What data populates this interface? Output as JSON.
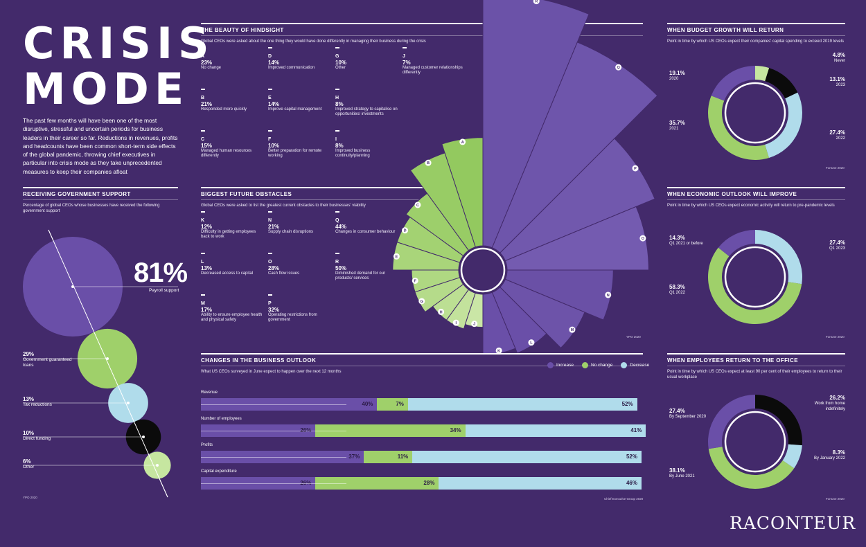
{
  "title_lines": [
    "CRISIS",
    "MODE"
  ],
  "intro": "The past few months will have been one of the most disruptive, stressful and uncertain periods for business leaders in their career so far. Reductions in revenues, profits and headcounts have been common short-term side effects of the global pandemic, throwing chief executives in particular into crisis mode as they take unprecedented measures to keep their companies afloat",
  "hindsight": {
    "title": "THE BEAUTY OF HINDSIGHT",
    "subtitle": "Global CEOs were asked about the one thing they would have done differently in managing their business during the crisis",
    "items": [
      {
        "letter": "A",
        "pct": "23%",
        "desc": "No change"
      },
      {
        "letter": "D",
        "pct": "14%",
        "desc": "Improved communication"
      },
      {
        "letter": "G",
        "pct": "10%",
        "desc": "Other"
      },
      {
        "letter": "J",
        "pct": "7%",
        "desc": "Managed customer relationships differently"
      },
      {
        "letter": "B",
        "pct": "21%",
        "desc": "Responded more quickly"
      },
      {
        "letter": "E",
        "pct": "14%",
        "desc": "Improve capital management"
      },
      {
        "letter": "H",
        "pct": "8%",
        "desc": "Improved strategy to capitalise on opportunities/ investments"
      },
      {
        "letter": "C",
        "pct": "15%",
        "desc": "Managed human resources differently"
      },
      {
        "letter": "F",
        "pct": "10%",
        "desc": "Better preparation for remote working"
      },
      {
        "letter": "I",
        "pct": "8%",
        "desc": "Improved business continuity/planning"
      }
    ]
  },
  "obstacles": {
    "title": "BIGGEST FUTURE OBSTACLES",
    "subtitle": "Global CEOs were asked to list the greatest current obstacles to their businesses' viability",
    "items": [
      {
        "letter": "K",
        "pct": "12%",
        "desc": "Difficulty in getting employees back to work"
      },
      {
        "letter": "N",
        "pct": "21%",
        "desc": "Supply chain disruptions"
      },
      {
        "letter": "Q",
        "pct": "44%",
        "desc": "Changes in consumer behaviour"
      },
      {
        "letter": "L",
        "pct": "13%",
        "desc": "Decreased access to capital"
      },
      {
        "letter": "O",
        "pct": "28%",
        "desc": "Cash flow issues"
      },
      {
        "letter": "R",
        "pct": "50%",
        "desc": "Diminished demand for our products/ services"
      },
      {
        "letter": "M",
        "pct": "17%",
        "desc": "Ability to ensure employee health and physical safety"
      },
      {
        "letter": "P",
        "pct": "32%",
        "desc": "Operating restrictions from government"
      }
    ],
    "source": "YPO 2020"
  },
  "gov": {
    "title": "RECEIVING GOVERNMENT SUPPORT",
    "subtitle": "Percentage of global CEOs whose businesses have received the following government support",
    "items": [
      {
        "pct": "81%",
        "label": "Payroll support"
      },
      {
        "pct": "29%",
        "label": "Government guaranteed loans"
      },
      {
        "pct": "13%",
        "label": "Tax reductions"
      },
      {
        "pct": "10%",
        "label": "Direct funding"
      },
      {
        "pct": "6%",
        "label": "Other"
      }
    ],
    "source": "YPO 2020"
  },
  "budget": {
    "title": "WHEN BUDGET GROWTH WILL RETURN",
    "subtitle": "Point in time by which US CEOs expect their companies' capital spending to exceed 2019 levels",
    "source": "Fortune 2020"
  },
  "economy": {
    "title": "WHEN ECONOMIC OUTLOOK WILL IMPROVE",
    "subtitle": "Point in time by which US CEOs expect economic activity will return to pre-pandemic levels",
    "source": "Fortune 2020"
  },
  "office": {
    "title": "WHEN EMPLOYEES RETURN TO THE OFFICE",
    "subtitle": "Point in time by which US CEOs expect at least 90 per cent of their employees to return to their usual workplace",
    "source": "Fortune 2020"
  },
  "outlook": {
    "title": "CHANGES IN THE BUSINESS OUTLOOK",
    "subtitle": "What US CEOs surveyed in June expect to happen over the next 12 months",
    "legend": [
      "Increase",
      "No change",
      "Decrease"
    ],
    "source": "Chief Executive Group 2020"
  },
  "colors": {
    "purple": "#6a4fa8",
    "green": "#9fd06a",
    "light": "#b0dceb",
    "black": "#0b0b0b",
    "lightgreen": "#c6e6a0"
  },
  "logo": "RACONTEUR",
  "chart_data": [
    {
      "type": "radial-bar",
      "name": "hindsight-and-obstacles",
      "series": [
        {
          "name": "The beauty of hindsight",
          "categories": [
            "A",
            "B",
            "C",
            "D",
            "E",
            "F",
            "G",
            "H",
            "I",
            "J"
          ],
          "values": [
            23,
            21,
            15,
            14,
            14,
            10,
            10,
            8,
            8,
            7
          ]
        },
        {
          "name": "Biggest future obstacles",
          "categories": [
            "K",
            "L",
            "M",
            "N",
            "O",
            "P",
            "Q",
            "R"
          ],
          "values": [
            12,
            13,
            17,
            21,
            28,
            32,
            44,
            50
          ]
        }
      ]
    },
    {
      "type": "bubble",
      "name": "Receiving government support",
      "categories": [
        "Payroll support",
        "Government guaranteed loans",
        "Tax reductions",
        "Direct funding",
        "Other"
      ],
      "values": [
        81,
        29,
        13,
        10,
        6
      ]
    },
    {
      "type": "pie",
      "name": "When budget growth will return",
      "categories": [
        "Never",
        "2023",
        "2022",
        "2021",
        "2020"
      ],
      "values": [
        4.8,
        13.1,
        27.4,
        35.7,
        19.1
      ]
    },
    {
      "type": "pie",
      "name": "When economic outlook will improve",
      "categories": [
        "Q1 2023",
        "Q1 2022",
        "Q1 2021 or before"
      ],
      "values": [
        27.4,
        58.3,
        14.3
      ]
    },
    {
      "type": "pie",
      "name": "When employees return to the office",
      "categories": [
        "Work from home indefinitely",
        "By January 2022",
        "By June 2021",
        "By September 2020"
      ],
      "values": [
        26.2,
        8.3,
        38.1,
        27.4
      ]
    },
    {
      "type": "bar",
      "stacked": true,
      "name": "Changes in the business outlook",
      "categories": [
        "Revenue",
        "Number of employees",
        "Profits",
        "Capital expenditure"
      ],
      "series": [
        {
          "name": "Increase",
          "values": [
            40,
            26,
            37,
            26
          ]
        },
        {
          "name": "No change",
          "values": [
            7,
            34,
            11,
            28
          ]
        },
        {
          "name": "Decrease",
          "values": [
            52,
            41,
            52,
            46
          ]
        }
      ]
    }
  ]
}
